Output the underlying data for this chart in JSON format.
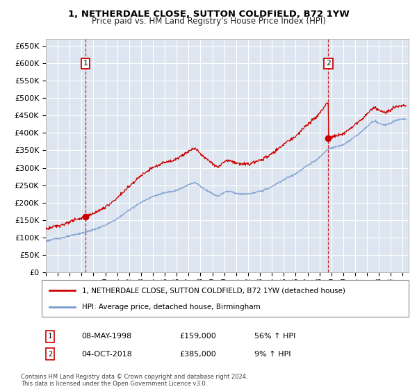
{
  "title1": "1, NETHERDALE CLOSE, SUTTON COLDFIELD, B72 1YW",
  "title2": "Price paid vs. HM Land Registry's House Price Index (HPI)",
  "background_color": "#dde6f0",
  "plot_bg": "#dde6f0",
  "grid_color": "#ffffff",
  "line1_color": "#cc0000",
  "line2_color": "#7799cc",
  "ylim": [
    0,
    670000
  ],
  "yticks": [
    0,
    50000,
    100000,
    150000,
    200000,
    250000,
    300000,
    350000,
    400000,
    450000,
    500000,
    550000,
    600000,
    650000
  ],
  "ytick_labels": [
    "£0",
    "£50K",
    "£100K",
    "£150K",
    "£200K",
    "£250K",
    "£300K",
    "£350K",
    "£400K",
    "£450K",
    "£500K",
    "£550K",
    "£600K",
    "£650K"
  ],
  "sale1_year": 1998.35,
  "sale1_price": 159000,
  "sale1_label": "1",
  "sale1_date": "08-MAY-1998",
  "sale1_hpi_pct": "56% ↑ HPI",
  "sale2_year": 2018.75,
  "sale2_price": 385000,
  "sale2_label": "2",
  "sale2_date": "04-OCT-2018",
  "sale2_hpi_pct": "9% ↑ HPI",
  "legend_line1": "1, NETHERDALE CLOSE, SUTTON COLDFIELD, B72 1YW (detached house)",
  "legend_line2": "HPI: Average price, detached house, Birmingham",
  "footnote": "Contains HM Land Registry data © Crown copyright and database right 2024.\nThis data is licensed under the Open Government Licence v3.0.",
  "xmin": 1995,
  "xmax": 2025.5
}
